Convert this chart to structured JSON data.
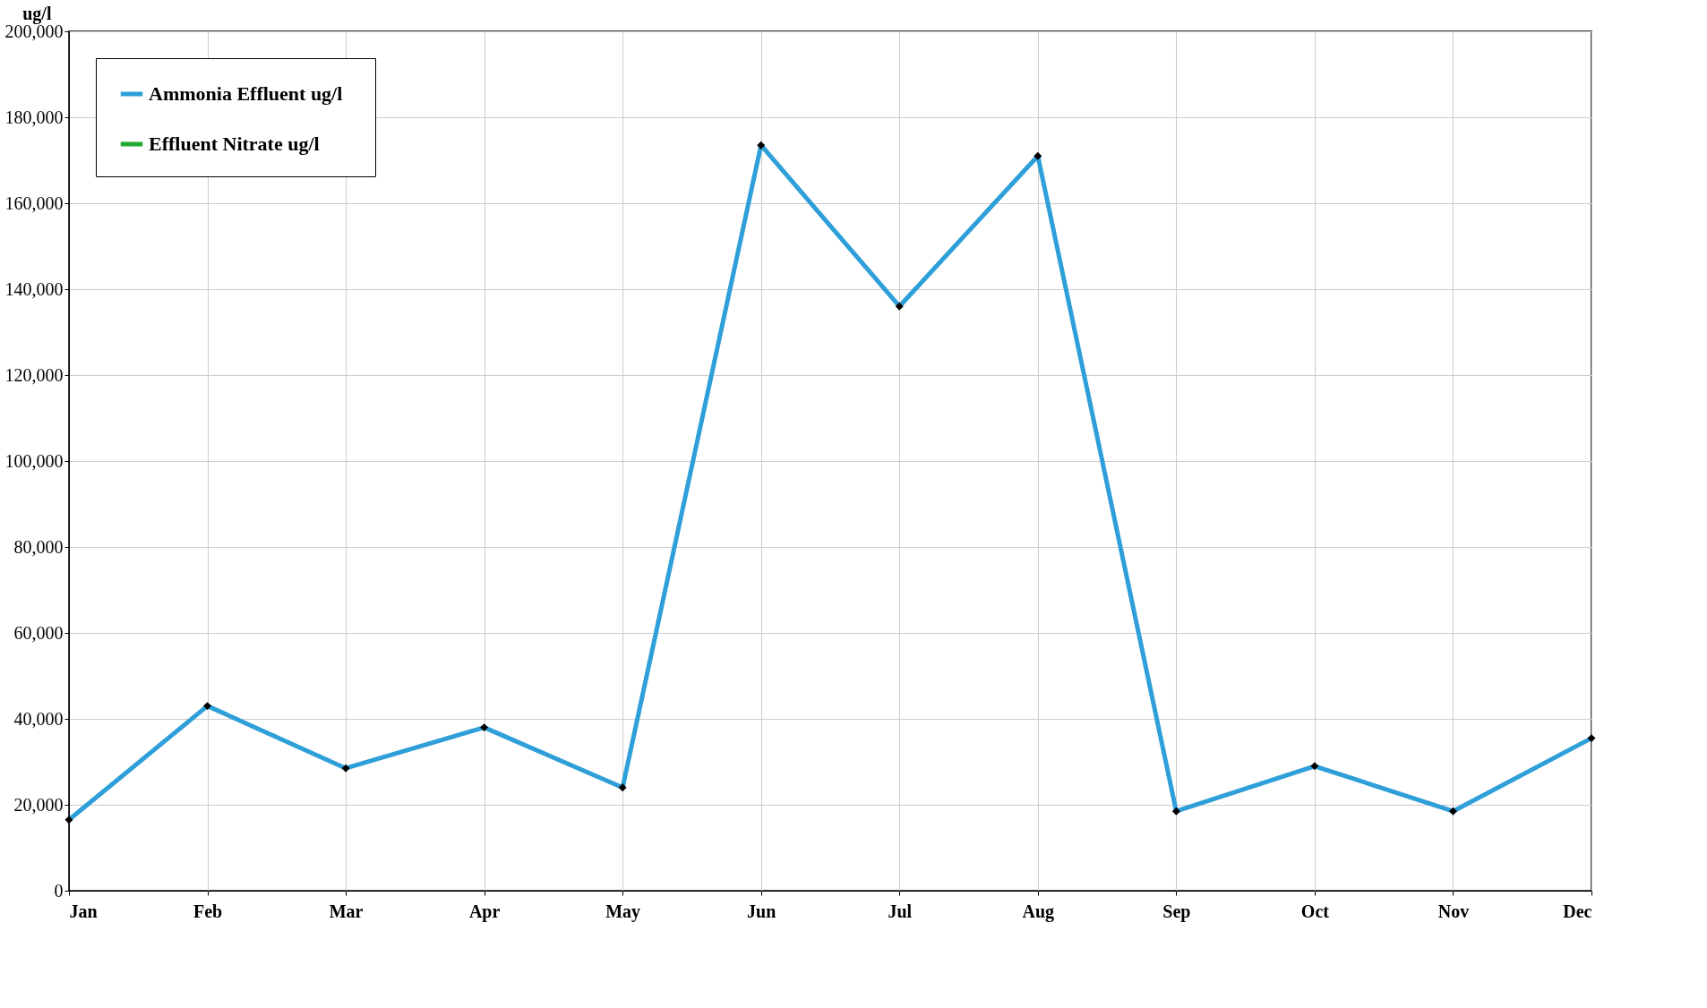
{
  "chart_data": {
    "type": "line",
    "ylabel": "ug/l",
    "categories": [
      "Jan",
      "Feb",
      "Mar",
      "Apr",
      "May",
      "Jun",
      "Jul",
      "Aug",
      "Sep",
      "Oct",
      "Nov",
      "Dec"
    ],
    "series": [
      {
        "name": "Ammonia  Effluent  ug/l",
        "color": "#2e9fd8",
        "marker": "diamond",
        "values": [
          16500,
          43000,
          28500,
          38000,
          24000,
          173500,
          136000,
          171000,
          18500,
          29000,
          18500,
          35500
        ]
      },
      {
        "name": "Effluent Nitrate ug/l",
        "color": "#22aa33",
        "marker": "square",
        "values": [
          null,
          null,
          null,
          null,
          null,
          null,
          null,
          null,
          null,
          null,
          null,
          null
        ]
      }
    ],
    "ylim": [
      0,
      200000
    ],
    "yticks": [
      0,
      {
        "value": 20000,
        "label": "20,000"
      },
      {
        "value": 40000,
        "label": "40,000"
      },
      {
        "value": 60000,
        "label": "60,000"
      },
      {
        "value": 80000,
        "label": "80,000"
      },
      {
        "value": 100000,
        "label": "100,000"
      },
      {
        "value": 120000,
        "label": "120,000"
      },
      {
        "value": 140000,
        "label": "140,000"
      },
      {
        "value": 160000,
        "label": "160,000"
      },
      {
        "value": 180000,
        "label": "180,000"
      },
      {
        "value": 200000,
        "label": "200,000"
      }
    ],
    "grid": true,
    "legend": "top left",
    "line_style": "solid"
  }
}
